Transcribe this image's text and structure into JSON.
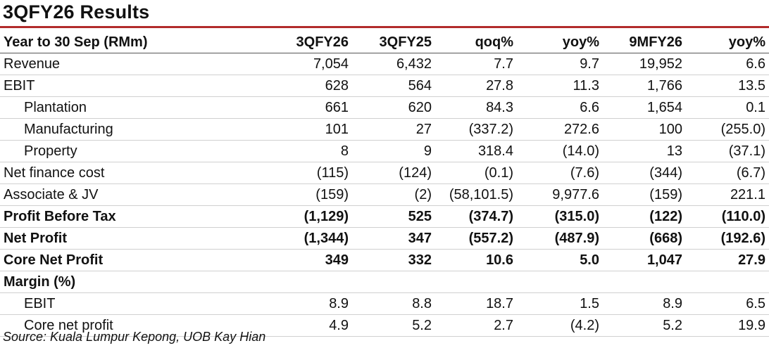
{
  "title": "3QFY26 Results",
  "headers": [
    "Year to 30 Sep (RMm)",
    "3QFY26",
    "3QFY25",
    "qoq%",
    "yoy%",
    "9MFY26",
    "yoy%"
  ],
  "rows": [
    {
      "label": "Revenue",
      "values": [
        "7,054",
        "6,432",
        "7.7",
        "9.7",
        "19,952",
        "6.6"
      ]
    },
    {
      "label": "EBIT",
      "values": [
        "628",
        "564",
        "27.8",
        "11.3",
        "1,766",
        "13.5"
      ]
    },
    {
      "label": "Plantation",
      "values": [
        "661",
        "620",
        "84.3",
        "6.6",
        "1,654",
        "0.1"
      ]
    },
    {
      "label": "Manufacturing",
      "values": [
        "101",
        "27",
        "(337.2)",
        "272.6",
        "100",
        "(255.0)"
      ]
    },
    {
      "label": "Property",
      "values": [
        "8",
        "9",
        "318.4",
        "(14.0)",
        "13",
        "(37.1)"
      ]
    },
    {
      "label": "Net finance cost",
      "values": [
        "(115)",
        "(124)",
        "(0.1)",
        "(7.6)",
        "(344)",
        "(6.7)"
      ]
    },
    {
      "label": "Associate & JV",
      "values": [
        "(159)",
        "(2)",
        "(58,101.5)",
        "9,977.6",
        "(159)",
        "221.1"
      ]
    },
    {
      "label": "Profit Before Tax",
      "values": [
        "(1,129)",
        "525",
        "(374.7)",
        "(315.0)",
        "(122)",
        "(110.0)"
      ]
    },
    {
      "label": "Net Profit",
      "values": [
        "(1,344)",
        "347",
        "(557.2)",
        "(487.9)",
        "(668)",
        "(192.6)"
      ]
    },
    {
      "label": "Core Net Profit",
      "values": [
        "349",
        "332",
        "10.6",
        "5.0",
        "1,047",
        "27.9"
      ]
    },
    {
      "label": "Margin (%)",
      "values": [
        "",
        "",
        "",
        "",
        "",
        ""
      ]
    },
    {
      "label": "EBIT",
      "values": [
        "8.9",
        "8.8",
        "18.7",
        "1.5",
        "8.9",
        "6.5"
      ]
    },
    {
      "label": "Core net profit",
      "values": [
        "4.9",
        "5.2",
        "2.7",
        "(4.2)",
        "5.2",
        "19.9"
      ]
    }
  ],
  "source": "Source: Kuala Lumpur Kepong, UOB Kay Hian",
  "colors": {
    "accent_rule": "#b22b2b"
  }
}
